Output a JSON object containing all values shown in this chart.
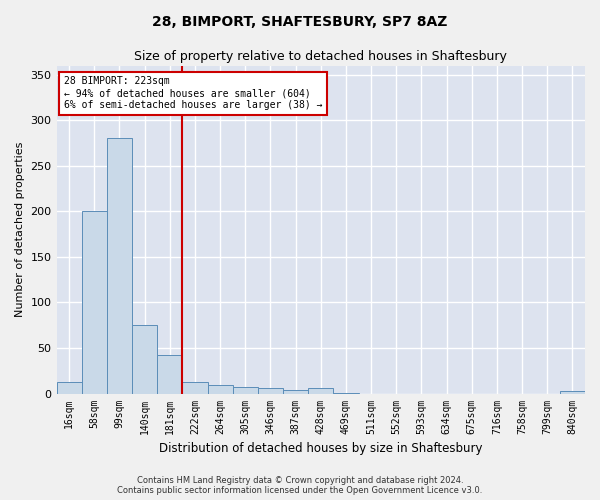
{
  "title1": "28, BIMPORT, SHAFTESBURY, SP7 8AZ",
  "title2": "Size of property relative to detached houses in Shaftesbury",
  "xlabel": "Distribution of detached houses by size in Shaftesbury",
  "ylabel": "Number of detached properties",
  "bin_labels": [
    "16sqm",
    "58sqm",
    "99sqm",
    "140sqm",
    "181sqm",
    "222sqm",
    "264sqm",
    "305sqm",
    "346sqm",
    "387sqm",
    "428sqm",
    "469sqm",
    "511sqm",
    "552sqm",
    "593sqm",
    "634sqm",
    "675sqm",
    "716sqm",
    "758sqm",
    "799sqm",
    "840sqm"
  ],
  "bar_heights": [
    13,
    200,
    280,
    75,
    42,
    13,
    9,
    7,
    6,
    4,
    6,
    1,
    0,
    0,
    0,
    0,
    0,
    0,
    0,
    0,
    3
  ],
  "bar_color": "#c9d9e8",
  "bar_edge_color": "#5b8db8",
  "vline_x_index": 5,
  "vline_color": "#cc0000",
  "annotation_text": "28 BIMPORT: 223sqm\n← 94% of detached houses are smaller (604)\n6% of semi-detached houses are larger (38) →",
  "annotation_box_color": "#ffffff",
  "annotation_box_edge": "#cc0000",
  "ylim": [
    0,
    360
  ],
  "yticks": [
    0,
    50,
    100,
    150,
    200,
    250,
    300,
    350
  ],
  "background_color": "#dde3ef",
  "grid_color": "#ffffff",
  "fig_background": "#f0f0f0",
  "footer": "Contains HM Land Registry data © Crown copyright and database right 2024.\nContains public sector information licensed under the Open Government Licence v3.0."
}
